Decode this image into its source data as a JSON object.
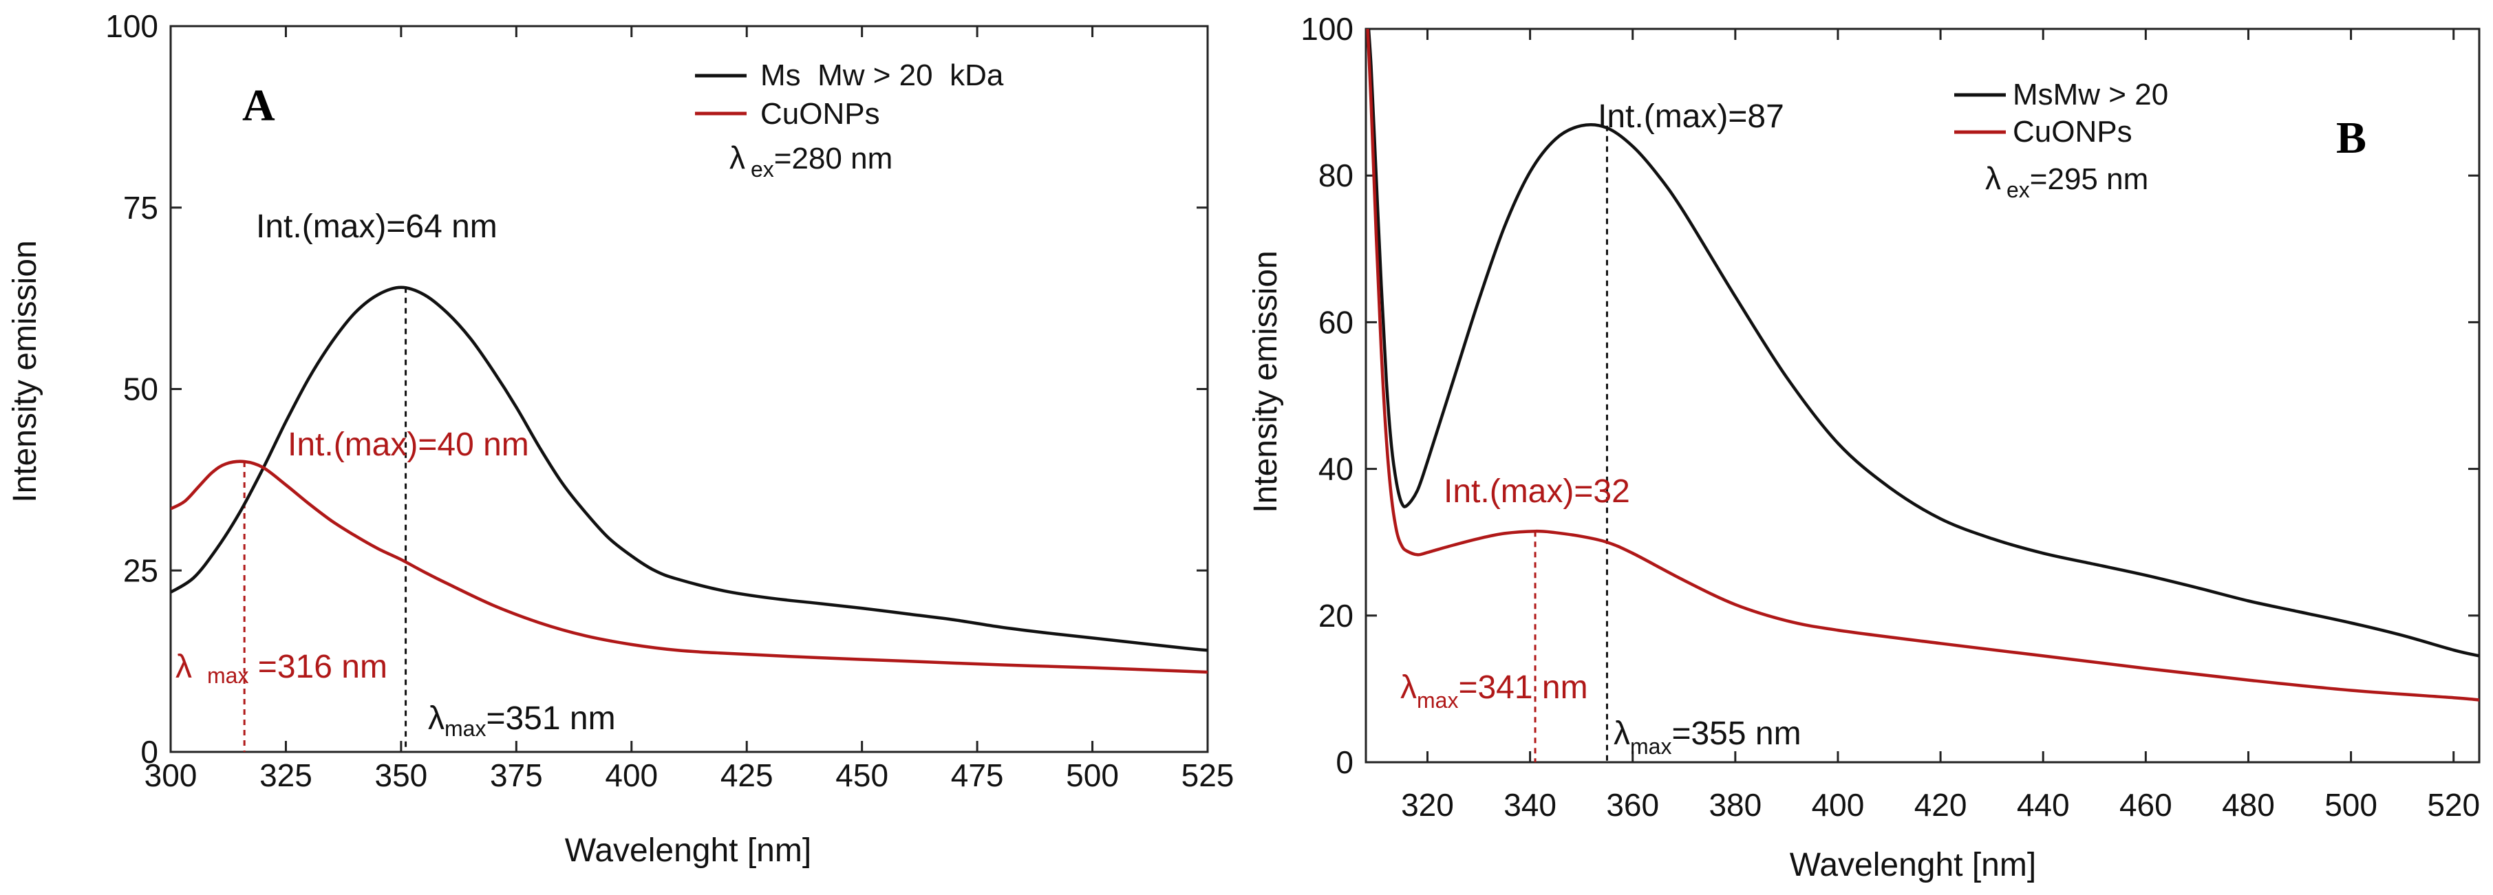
{
  "chart_data": [
    {
      "type": "line",
      "panel": "A",
      "xlabel": "Wavelenght [nm]",
      "ylabel": "Intensity emission",
      "xlim": [
        300,
        525
      ],
      "ylim": [
        0,
        100
      ],
      "xticks": [
        300,
        325,
        350,
        375,
        400,
        425,
        450,
        475,
        500,
        525
      ],
      "yticks": [
        0,
        25,
        50,
        75,
        100
      ],
      "legend": [
        {
          "label": "Ms  Mw > 20  kDa",
          "color": "#111111"
        },
        {
          "label": "CuONPs",
          "color": "#b01818"
        }
      ],
      "excitation": {
        "symbol": "λ",
        "sub": "ex",
        "text": "=280 nm"
      },
      "series": [
        {
          "name": "Ms  Mw > 20  kDa",
          "color": "#111111",
          "x": [
            300,
            305,
            310,
            315,
            320,
            325,
            330,
            335,
            340,
            345,
            350,
            355,
            360,
            365,
            370,
            375,
            380,
            385,
            390,
            395,
            400,
            405,
            410,
            420,
            430,
            440,
            450,
            460,
            470,
            480,
            490,
            500,
            510,
            520,
            525
          ],
          "y": [
            22,
            24,
            28,
            33,
            39,
            45.5,
            51.5,
            56.5,
            60.5,
            63,
            64,
            63,
            60.5,
            57,
            52.5,
            47.5,
            42,
            37,
            33,
            29.5,
            27,
            25,
            23.8,
            22.2,
            21.2,
            20.5,
            19.8,
            19,
            18.2,
            17.2,
            16.4,
            15.7,
            15,
            14.3,
            14
          ]
        },
        {
          "name": "CuONPs",
          "color": "#b01818",
          "x": [
            300,
            303,
            306,
            309,
            312,
            316,
            320,
            325,
            330,
            335,
            340,
            345,
            350,
            355,
            360,
            370,
            380,
            390,
            400,
            410,
            420,
            440,
            460,
            480,
            500,
            525
          ],
          "y": [
            33.5,
            34.5,
            36.5,
            38.5,
            39.7,
            40,
            39.2,
            36.8,
            34.2,
            31.8,
            29.8,
            28,
            26.5,
            24.8,
            23.2,
            20.2,
            17.8,
            16,
            14.8,
            14,
            13.6,
            13,
            12.5,
            12,
            11.6,
            11
          ]
        }
      ],
      "annotations": [
        {
          "id": "ms-int",
          "text": "Int.(max)=64 nm",
          "color": "#111111"
        },
        {
          "id": "cu-int",
          "text": "Int.(max)=40 nm",
          "color": "#b01818"
        },
        {
          "id": "cu-lambda",
          "symbol": "λ",
          "sub": "max",
          "text": " =316 nm",
          "color": "#b01818",
          "x": 316,
          "y": 40
        },
        {
          "id": "ms-lambda",
          "symbol": "λ",
          "sub": "max",
          "text": "=351 nm",
          "color": "#111111",
          "x": 351,
          "y": 64
        }
      ]
    },
    {
      "type": "line",
      "panel": "B",
      "xlabel": "Wavelenght [nm]",
      "ylabel": "Intensity emission",
      "xlim": [
        308,
        525
      ],
      "ylim": [
        0,
        100
      ],
      "xticks": [
        320,
        340,
        360,
        380,
        400,
        420,
        440,
        460,
        480,
        500,
        520
      ],
      "yticks": [
        0,
        20,
        40,
        60,
        80,
        100
      ],
      "legend": [
        {
          "label": "MsMw > 20",
          "color": "#111111"
        },
        {
          "label": "CuONPs",
          "color": "#b01818"
        }
      ],
      "excitation": {
        "symbol": "λ",
        "sub": "ex",
        "text": "=295 nm"
      },
      "series": [
        {
          "name": "MsMw > 20",
          "color": "#111111",
          "x": [
            308,
            309,
            310,
            311,
            312,
            313,
            314,
            315,
            316,
            318,
            320,
            325,
            330,
            335,
            340,
            345,
            350,
            355,
            360,
            365,
            370,
            380,
            390,
            400,
            410,
            420,
            430,
            440,
            450,
            460,
            470,
            480,
            490,
            500,
            510,
            520,
            525
          ],
          "y": [
            105,
            95,
            80,
            65,
            52,
            43,
            38,
            35.3,
            35,
            37,
            41,
            52,
            63,
            73,
            80.5,
            85,
            86.8,
            86.5,
            84,
            80,
            75,
            63.5,
            52.5,
            43.5,
            37.5,
            33.2,
            30.5,
            28.5,
            27,
            25.5,
            23.8,
            22,
            20.5,
            19,
            17.3,
            15.3,
            14.5
          ]
        },
        {
          "name": "CuONPs",
          "color": "#b01818",
          "x": [
            308,
            309,
            310,
            311,
            312,
            313,
            314,
            315,
            316,
            318,
            320,
            325,
            330,
            335,
            341,
            345,
            350,
            355,
            360,
            370,
            380,
            390,
            400,
            420,
            440,
            460,
            480,
            500,
            520,
            525
          ],
          "y": [
            105,
            90,
            72,
            56,
            44,
            36,
            31.5,
            29.5,
            28.8,
            28.3,
            28.6,
            29.6,
            30.5,
            31.2,
            31.5,
            31.3,
            30.8,
            30,
            28.5,
            24.8,
            21.5,
            19.3,
            18,
            16.2,
            14.5,
            12.8,
            11.2,
            9.8,
            8.8,
            8.5
          ]
        }
      ],
      "annotations": [
        {
          "id": "ms-int",
          "text": "Int.(max)=87",
          "color": "#111111"
        },
        {
          "id": "cu-int",
          "text": "Int.(max)=32",
          "color": "#b01818"
        },
        {
          "id": "cu-lambda",
          "symbol": "λ",
          "sub": "max",
          "text": "=341 nm",
          "color": "#b01818",
          "x": 341,
          "y": 31.5
        },
        {
          "id": "ms-lambda",
          "symbol": "λ",
          "sub": "max",
          "text": "=355 nm",
          "color": "#111111",
          "x": 355,
          "y": 86.8
        }
      ]
    }
  ]
}
